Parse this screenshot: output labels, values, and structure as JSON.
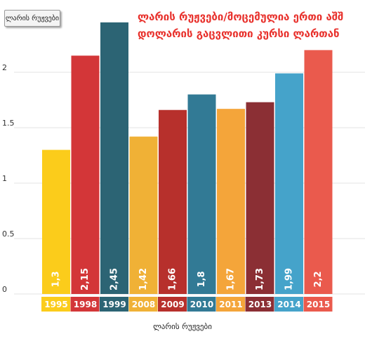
{
  "legend": {
    "label": "ლარის რუჟვები"
  },
  "chart_data": {
    "type": "bar",
    "title": "ლარის რუჟვები/მოცემულია ერთი აშშ დოლარის გაცვლითი კურსი ლართან",
    "xlabel": "ლარის რუჟვები",
    "ylabel": "",
    "ylim": [
      0,
      2.5
    ],
    "yticks": [
      "0",
      "0.5",
      "1",
      "1.5",
      "2"
    ],
    "grid": true,
    "categories": [
      "1995",
      "1998",
      "1999",
      "2008",
      "2009",
      "2010",
      "2011",
      "2013",
      "2014",
      "2015"
    ],
    "values": [
      1.3,
      2.15,
      2.45,
      1.42,
      1.66,
      1.8,
      1.67,
      1.73,
      1.99,
      2.2
    ],
    "value_labels": [
      "1,3",
      "2,15",
      "2,45",
      "1,42",
      "1,66",
      "1,8",
      "1,67",
      "1,73",
      "1,99",
      "2,2"
    ],
    "colors": [
      "#fbcc1b",
      "#d33638",
      "#2c6474",
      "#f0b136",
      "#b7302c",
      "#327a95",
      "#f4a53a",
      "#8b2f34",
      "#45a3ca",
      "#ea5a4d"
    ]
  }
}
